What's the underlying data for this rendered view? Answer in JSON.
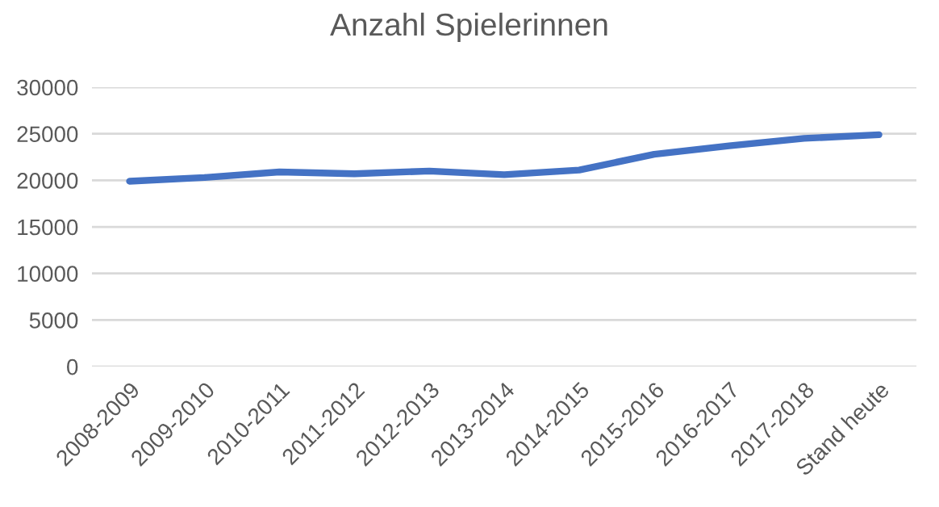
{
  "chart_data": {
    "type": "line",
    "title": "Anzahl Spielerinnen",
    "categories": [
      "2008-2009",
      "2009-2010",
      "2010-2011",
      "2011-2012",
      "2012-2013",
      "2013-2014",
      "2014-2015",
      "2015-2016",
      "2016-2017",
      "2017-2018",
      "Stand heute"
    ],
    "series": [
      {
        "color": "#4472c4",
        "values": [
          19900,
          20300,
          20900,
          20700,
          21000,
          20600,
          21100,
          22800,
          23700,
          24500,
          24900
        ]
      }
    ],
    "ylim": [
      0,
      30000
    ],
    "yticks": [
      0,
      5000,
      10000,
      15000,
      20000,
      25000,
      30000
    ],
    "grid": "y",
    "marker": "none",
    "line_style": "solid"
  }
}
